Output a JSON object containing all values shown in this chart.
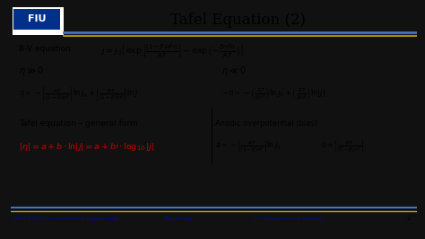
{
  "title": "Tafel Equation (2)",
  "blue_line_color": "#4472c4",
  "gold_line_color": "#c8a800",
  "footer_text_color": "#0000cc",
  "footer_left": "EMA 5305 Electrochemical Engineering",
  "footer_mid": "Zhe Cheng",
  "footer_right": "3 Electrochemical Kinetics",
  "footer_page": "2",
  "red_color": "#cc0000",
  "bv_label": "B-V equation:",
  "tafel_label": "Tafel equation – general form",
  "anodic_label": "Anodic overpotential (bias)"
}
